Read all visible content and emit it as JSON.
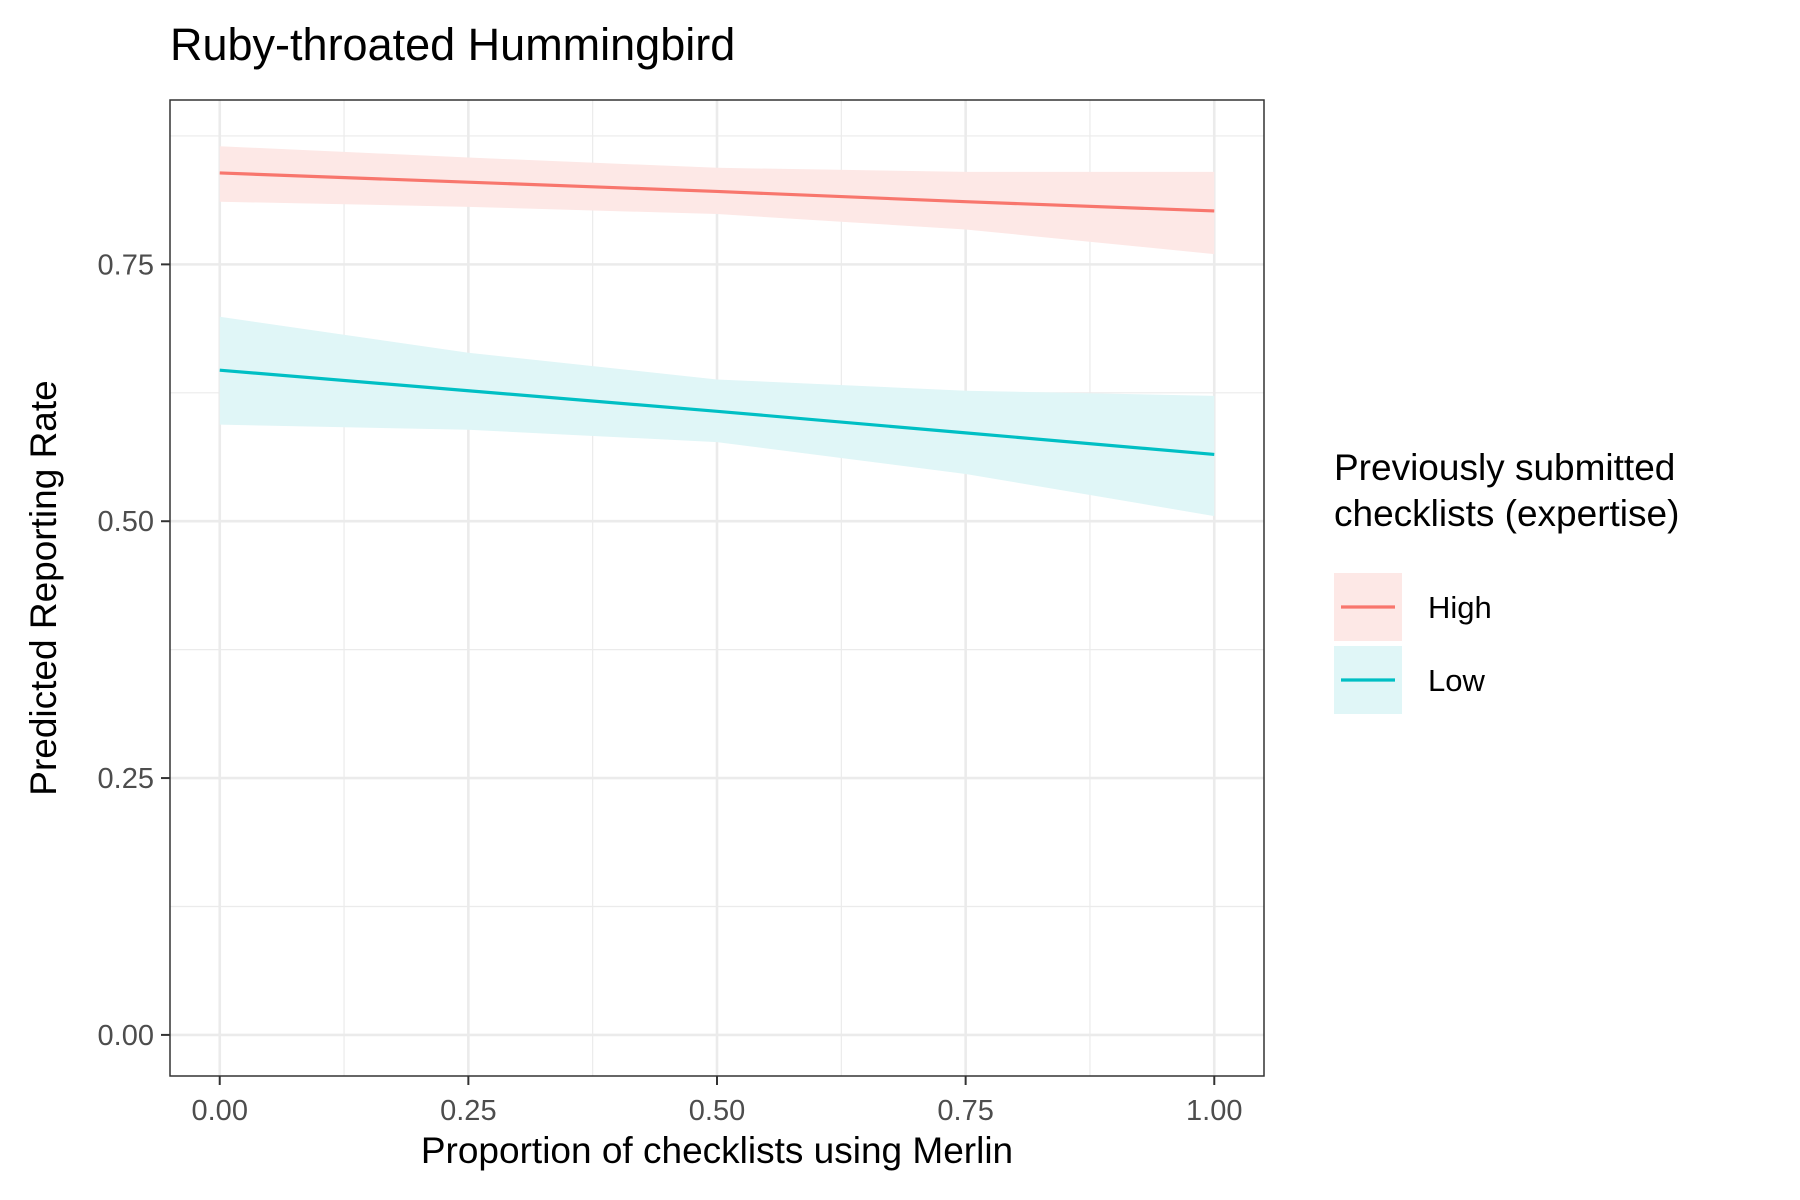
{
  "chart_data": {
    "type": "line",
    "title": "Ruby-throated Hummingbird",
    "xlabel": "Proportion of checklists using Merlin",
    "ylabel": "Predicted Reporting Rate",
    "xlim": [
      -0.05,
      1.05
    ],
    "ylim": [
      -0.04,
      0.91
    ],
    "x_ticks": [
      0,
      0.25,
      0.5,
      0.75,
      1
    ],
    "x_tick_labels": [
      "0.00",
      "0.25",
      "0.50",
      "0.75",
      "1.00"
    ],
    "y_ticks": [
      0,
      0.25,
      0.5,
      0.75
    ],
    "y_tick_labels": [
      "0.00",
      "0.25",
      "0.50",
      "0.75"
    ],
    "grid": true,
    "legend": {
      "title": "Previously submitted checklists (expertise)",
      "title_lines": [
        "Previously submitted",
        "checklists (expertise)"
      ],
      "position": "right"
    },
    "series": [
      {
        "name": "High",
        "color": "#F8766D",
        "ribbon_color": "#FDE8E6",
        "x": [
          0,
          0.25,
          0.5,
          0.75,
          1
        ],
        "y": [
          0.839,
          0.83,
          0.821,
          0.811,
          0.802
        ],
        "lower": [
          0.811,
          0.806,
          0.799,
          0.784,
          0.76
        ],
        "upper": [
          0.865,
          0.854,
          0.844,
          0.84,
          0.84
        ]
      },
      {
        "name": "Low",
        "color": "#00BFC4",
        "ribbon_color": "#E0F6F7",
        "x": [
          0,
          0.25,
          0.5,
          0.75,
          1
        ],
        "y": [
          0.647,
          0.627,
          0.607,
          0.586,
          0.565
        ],
        "lower": [
          0.594,
          0.589,
          0.577,
          0.546,
          0.505
        ],
        "upper": [
          0.699,
          0.664,
          0.638,
          0.627,
          0.622
        ]
      }
    ]
  }
}
